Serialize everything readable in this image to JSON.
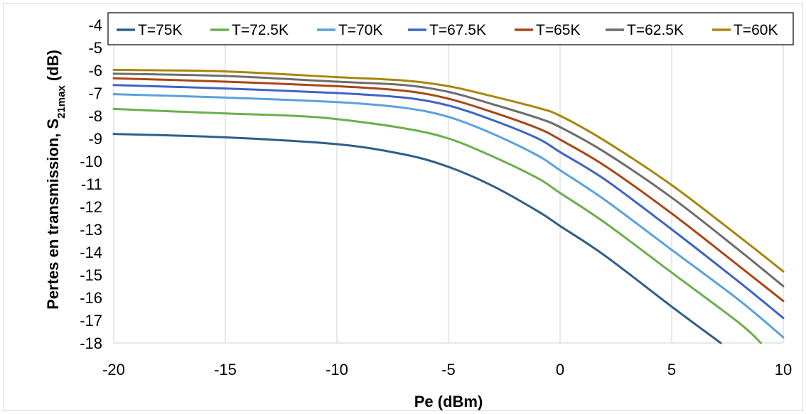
{
  "chart_data": {
    "type": "line",
    "xlabel": "Pe (dBm)",
    "ylabel": {
      "prefix": "Pertes en transmission, S",
      "subscript": "21max",
      "suffix": " (dB)"
    },
    "xlim": [
      -20,
      10
    ],
    "ylim": [
      -18,
      -4
    ],
    "x_ticks": [
      -20,
      -15,
      -10,
      -5,
      0,
      5,
      10
    ],
    "y_ticks": [
      -4,
      -5,
      -6,
      -7,
      -8,
      -9,
      -10,
      -11,
      -12,
      -13,
      -14,
      -15,
      -16,
      -17,
      -18
    ],
    "grid": "vertical",
    "legend_position": "top",
    "series": [
      {
        "name": "T=75K",
        "color": "#2e5f8a",
        "points": [
          [
            -20,
            -8.8
          ],
          [
            -15,
            -8.95
          ],
          [
            -10,
            -9.25
          ],
          [
            -7,
            -9.7
          ],
          [
            -5,
            -10.25
          ],
          [
            -3,
            -11.1
          ],
          [
            -1,
            -12.2
          ],
          [
            0,
            -12.85
          ],
          [
            2,
            -14.15
          ],
          [
            5,
            -16.4
          ],
          [
            7.2,
            -18
          ]
        ]
      },
      {
        "name": "T=72.5K",
        "color": "#6ab04c",
        "points": [
          [
            -20,
            -7.7
          ],
          [
            -15,
            -7.9
          ],
          [
            -12,
            -8.0
          ],
          [
            -10,
            -8.15
          ],
          [
            -7,
            -8.55
          ],
          [
            -5,
            -9.0
          ],
          [
            -3,
            -9.8
          ],
          [
            -1,
            -10.75
          ],
          [
            0,
            -11.4
          ],
          [
            2,
            -12.7
          ],
          [
            5,
            -14.9
          ],
          [
            8,
            -17.1
          ],
          [
            9,
            -18
          ]
        ]
      },
      {
        "name": "T=70K",
        "color": "#5aa2da",
        "points": [
          [
            -20,
            -7.05
          ],
          [
            -15,
            -7.2
          ],
          [
            -10,
            -7.4
          ],
          [
            -7,
            -7.65
          ],
          [
            -5,
            -8.05
          ],
          [
            -3,
            -8.8
          ],
          [
            -1,
            -9.75
          ],
          [
            0,
            -10.4
          ],
          [
            2,
            -11.7
          ],
          [
            5,
            -13.9
          ],
          [
            8,
            -16.1
          ],
          [
            10,
            -17.75
          ]
        ]
      },
      {
        "name": "T=67.5K",
        "color": "#3e64c4",
        "points": [
          [
            -20,
            -6.65
          ],
          [
            -15,
            -6.8
          ],
          [
            -10,
            -7.0
          ],
          [
            -7,
            -7.2
          ],
          [
            -5,
            -7.55
          ],
          [
            -3,
            -8.2
          ],
          [
            -1,
            -9.0
          ],
          [
            0,
            -9.6
          ],
          [
            2,
            -10.8
          ],
          [
            5,
            -13.0
          ],
          [
            8,
            -15.3
          ],
          [
            10,
            -16.9
          ]
        ]
      },
      {
        "name": "T=65K",
        "color": "#a94616",
        "points": [
          [
            -20,
            -6.35
          ],
          [
            -15,
            -6.5
          ],
          [
            -10,
            -6.7
          ],
          [
            -7,
            -6.9
          ],
          [
            -5,
            -7.25
          ],
          [
            -3,
            -7.85
          ],
          [
            -1,
            -8.55
          ],
          [
            0,
            -9.05
          ],
          [
            2,
            -10.2
          ],
          [
            5,
            -12.3
          ],
          [
            8,
            -14.6
          ],
          [
            10,
            -16.15
          ]
        ]
      },
      {
        "name": "T=62.5K",
        "color": "#6d6d6d",
        "points": [
          [
            -20,
            -6.15
          ],
          [
            -15,
            -6.25
          ],
          [
            -10,
            -6.5
          ],
          [
            -7,
            -6.65
          ],
          [
            -5,
            -6.95
          ],
          [
            -3,
            -7.5
          ],
          [
            -1,
            -8.1
          ],
          [
            0,
            -8.5
          ],
          [
            2,
            -9.6
          ],
          [
            5,
            -11.6
          ],
          [
            8,
            -13.9
          ],
          [
            10,
            -15.5
          ]
        ]
      },
      {
        "name": "T=60K",
        "color": "#a8860c",
        "points": [
          [
            -20,
            -5.98
          ],
          [
            -15,
            -6.05
          ],
          [
            -10,
            -6.3
          ],
          [
            -7,
            -6.45
          ],
          [
            -5,
            -6.7
          ],
          [
            -3,
            -7.15
          ],
          [
            -1,
            -7.65
          ],
          [
            0,
            -8.0
          ],
          [
            2,
            -9.1
          ],
          [
            5,
            -11.05
          ],
          [
            8,
            -13.3
          ],
          [
            10,
            -14.85
          ]
        ]
      }
    ]
  }
}
